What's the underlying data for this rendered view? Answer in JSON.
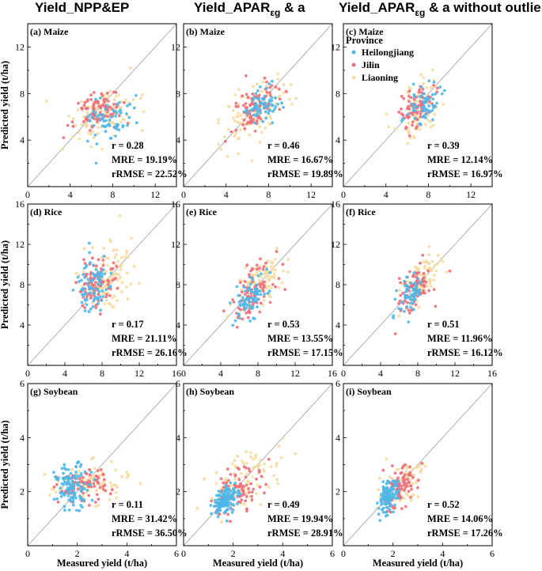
{
  "column_titles": [
    {
      "main": "Yield_NPP&EP",
      "sub": "",
      "tail": ""
    },
    {
      "main": "Yield_APAR",
      "sub": "εg",
      "tail": " & a"
    },
    {
      "main": "Yield_APAR",
      "sub": "εg",
      "tail": " & a without outlier"
    }
  ],
  "ylabel": "Predicted yield (t/ha)",
  "xlabel": "Measured yield (t/ha)",
  "legend": {
    "title": "Province",
    "entries": [
      {
        "name": "Heilongjiang",
        "color": "#4db8e8"
      },
      {
        "name": "Jilin",
        "color": "#ec6f7b"
      },
      {
        "name": "Liaoning",
        "color": "#f6dca0"
      }
    ]
  },
  "chart_data": [
    {
      "type": "scatter",
      "label": "(a) Maize",
      "crop": "maize",
      "limits": [
        0,
        14
      ],
      "ticks": [
        4,
        8,
        12
      ],
      "stats": {
        "r": "r = 0.28",
        "mre": "MRE = 19.19%",
        "rrmse": "rRMSE = 22.52%"
      },
      "clusters": [
        {
          "series": "Liaoning",
          "n": 110,
          "mx": 7.0,
          "sx": 1.6,
          "my": 6.2,
          "sy": 1.1,
          "corr": 0.3
        },
        {
          "series": "Jilin",
          "n": 90,
          "mx": 6.6,
          "sx": 1.1,
          "my": 6.5,
          "sy": 0.9,
          "corr": 0.3
        },
        {
          "series": "Heilongjiang",
          "n": 60,
          "mx": 7.8,
          "sx": 1.1,
          "my": 5.9,
          "sy": 0.8,
          "corr": 0.2
        }
      ]
    },
    {
      "type": "scatter",
      "label": "(b) Maize",
      "crop": "maize",
      "limits": [
        0,
        14
      ],
      "ticks": [
        4,
        8,
        12
      ],
      "stats": {
        "r": "r = 0.46",
        "mre": "MRE = 16.67%",
        "rrmse": "rRMSE = 19.89%"
      },
      "clusters": [
        {
          "series": "Liaoning",
          "n": 110,
          "mx": 6.8,
          "sx": 1.7,
          "my": 6.5,
          "sy": 1.4,
          "corr": 0.5
        },
        {
          "series": "Jilin",
          "n": 90,
          "mx": 6.8,
          "sx": 1.1,
          "my": 6.8,
          "sy": 1.0,
          "corr": 0.45
        },
        {
          "series": "Heilongjiang",
          "n": 60,
          "mx": 7.6,
          "sx": 1.0,
          "my": 7.0,
          "sy": 1.0,
          "corr": 0.4
        }
      ]
    },
    {
      "type": "scatter",
      "label": "(c) Maize",
      "crop": "maize",
      "limits": [
        0,
        14
      ],
      "ticks": [
        4,
        8,
        12
      ],
      "stats": {
        "r": "r = 0.39",
        "mre": "MRE = 12.14%",
        "rrmse": "rRMSE = 16.97%"
      },
      "clusters": [
        {
          "series": "Liaoning",
          "n": 90,
          "mx": 7.2,
          "sx": 0.9,
          "my": 6.8,
          "sy": 1.3,
          "corr": 0.4
        },
        {
          "series": "Jilin",
          "n": 80,
          "mx": 7.0,
          "sx": 0.8,
          "my": 6.9,
          "sy": 1.0,
          "corr": 0.4
        },
        {
          "series": "Heilongjiang",
          "n": 60,
          "mx": 7.7,
          "sx": 0.8,
          "my": 7.0,
          "sy": 0.9,
          "corr": 0.35
        }
      ]
    },
    {
      "type": "scatter",
      "label": "(d) Rice",
      "crop": "rice",
      "limits": [
        0,
        16
      ],
      "ticks": [
        4,
        8,
        12,
        16
      ],
      "stats": {
        "r": "r = 0.17",
        "mre": "MRE = 21.11%",
        "rrmse": "rRMSE = 26.16%"
      },
      "clusters": [
        {
          "series": "Liaoning",
          "n": 110,
          "mx": 8.6,
          "sx": 1.3,
          "my": 8.8,
          "sy": 1.6,
          "corr": 0.2
        },
        {
          "series": "Jilin",
          "n": 90,
          "mx": 7.3,
          "sx": 1.0,
          "my": 8.1,
          "sy": 1.2,
          "corr": 0.15
        },
        {
          "series": "Heilongjiang",
          "n": 80,
          "mx": 7.0,
          "sx": 0.9,
          "my": 7.9,
          "sy": 1.3,
          "corr": 0.1
        }
      ]
    },
    {
      "type": "scatter",
      "label": "(e) Rice",
      "crop": "rice",
      "limits": [
        0,
        16
      ],
      "ticks": [
        4,
        8,
        12,
        16
      ],
      "stats": {
        "r": "r = 0.53",
        "mre": "MRE = 13.55%",
        "rrmse": "rRMSE = 17.15%"
      },
      "clusters": [
        {
          "series": "Liaoning",
          "n": 100,
          "mx": 8.3,
          "sx": 1.3,
          "my": 8.3,
          "sy": 1.4,
          "corr": 0.55
        },
        {
          "series": "Jilin",
          "n": 90,
          "mx": 7.4,
          "sx": 1.1,
          "my": 7.4,
          "sy": 1.3,
          "corr": 0.5
        },
        {
          "series": "Heilongjiang",
          "n": 70,
          "mx": 7.2,
          "sx": 0.9,
          "my": 6.7,
          "sy": 1.1,
          "corr": 0.45
        }
      ]
    },
    {
      "type": "scatter",
      "label": "(f) Rice",
      "crop": "rice",
      "limits": [
        0,
        16
      ],
      "ticks": [
        4,
        8,
        12,
        16
      ],
      "stats": {
        "r": "r = 0.51",
        "mre": "MRE = 11.96%",
        "rrmse": "rRMSE = 16.12%"
      },
      "clusters": [
        {
          "series": "Liaoning",
          "n": 90,
          "mx": 8.4,
          "sx": 1.0,
          "my": 8.4,
          "sy": 1.2,
          "corr": 0.5
        },
        {
          "series": "Jilin",
          "n": 80,
          "mx": 7.6,
          "sx": 0.9,
          "my": 7.6,
          "sy": 1.3,
          "corr": 0.5
        },
        {
          "series": "Heilongjiang",
          "n": 60,
          "mx": 7.3,
          "sx": 0.7,
          "my": 7.0,
          "sy": 1.0,
          "corr": 0.45
        }
      ]
    },
    {
      "type": "scatter",
      "label": "(g) Soybean",
      "crop": "soybean",
      "limits": [
        0,
        6
      ],
      "ticks": [
        2,
        4,
        6
      ],
      "stats": {
        "r": "r = 0.11",
        "mre": "MRE = 31.42%",
        "rrmse": "rRMSE = 36.50%"
      },
      "clusters": [
        {
          "series": "Liaoning",
          "n": 90,
          "mx": 2.5,
          "sx": 0.8,
          "my": 2.3,
          "sy": 0.35,
          "corr": 0.1
        },
        {
          "series": "Jilin",
          "n": 90,
          "mx": 2.2,
          "sx": 0.5,
          "my": 2.2,
          "sy": 0.3,
          "corr": 0.1
        },
        {
          "series": "Heilongjiang",
          "n": 110,
          "mx": 1.8,
          "sx": 0.35,
          "my": 2.2,
          "sy": 0.4,
          "corr": 0.05
        }
      ]
    },
    {
      "type": "scatter",
      "label": "(h) Soybean",
      "crop": "soybean",
      "limits": [
        0,
        6
      ],
      "ticks": [
        2,
        4,
        6
      ],
      "stats": {
        "r": "r = 0.49",
        "mre": "MRE = 19.94%",
        "rrmse": "rRMSE = 28.91%"
      },
      "clusters": [
        {
          "series": "Liaoning",
          "n": 90,
          "mx": 2.6,
          "sx": 0.8,
          "my": 2.5,
          "sy": 0.6,
          "corr": 0.5
        },
        {
          "series": "Jilin",
          "n": 90,
          "mx": 2.2,
          "sx": 0.5,
          "my": 2.1,
          "sy": 0.45,
          "corr": 0.5
        },
        {
          "series": "Heilongjiang",
          "n": 120,
          "mx": 1.7,
          "sx": 0.25,
          "my": 1.7,
          "sy": 0.3,
          "corr": 0.4
        }
      ]
    },
    {
      "type": "scatter",
      "label": "(i) Soybean",
      "crop": "soybean",
      "limits": [
        0,
        6
      ],
      "ticks": [
        2,
        4,
        6
      ],
      "stats": {
        "r": "r = 0.52",
        "mre": "MRE = 14.06%",
        "rrmse": "rRMSE = 17.26%"
      },
      "clusters": [
        {
          "series": "Liaoning",
          "n": 80,
          "mx": 2.3,
          "sx": 0.45,
          "my": 2.3,
          "sy": 0.45,
          "corr": 0.5
        },
        {
          "series": "Jilin",
          "n": 90,
          "mx": 2.2,
          "sx": 0.4,
          "my": 2.1,
          "sy": 0.4,
          "corr": 0.5
        },
        {
          "series": "Heilongjiang",
          "n": 110,
          "mx": 1.8,
          "sx": 0.2,
          "my": 1.8,
          "sy": 0.3,
          "corr": 0.45
        }
      ]
    }
  ]
}
